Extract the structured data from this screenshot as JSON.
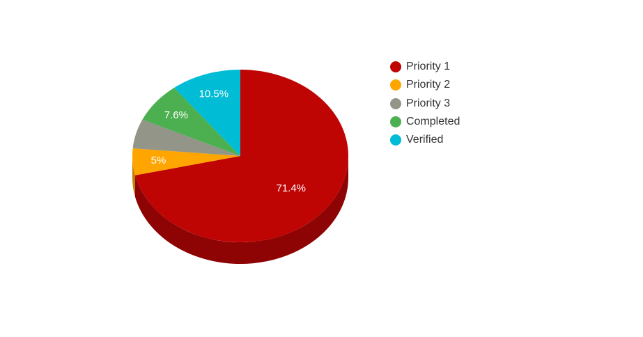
{
  "chart_data": {
    "type": "pie",
    "title": "",
    "legend_position": "right",
    "three_d": true,
    "slices": [
      {
        "label": "Priority 1",
        "value": 71.4,
        "value_label": "71.4%",
        "color": "#bf0404",
        "side_color": "#8e0303"
      },
      {
        "label": "Priority 2",
        "value": 5,
        "value_label": "5%",
        "color": "#ffa500",
        "side_color": "#c47f00"
      },
      {
        "label": "Priority 3",
        "value": 5.5,
        "value_label": "",
        "color": "#929588",
        "side_color": "#6e7066"
      },
      {
        "label": "Completed",
        "value": 7.6,
        "value_label": "7.6%",
        "color": "#4caf50",
        "side_color": "#38823b"
      },
      {
        "label": "Verified",
        "value": 10.5,
        "value_label": "10.5%",
        "color": "#00bcd4",
        "side_color": "#008a9c"
      }
    ]
  }
}
